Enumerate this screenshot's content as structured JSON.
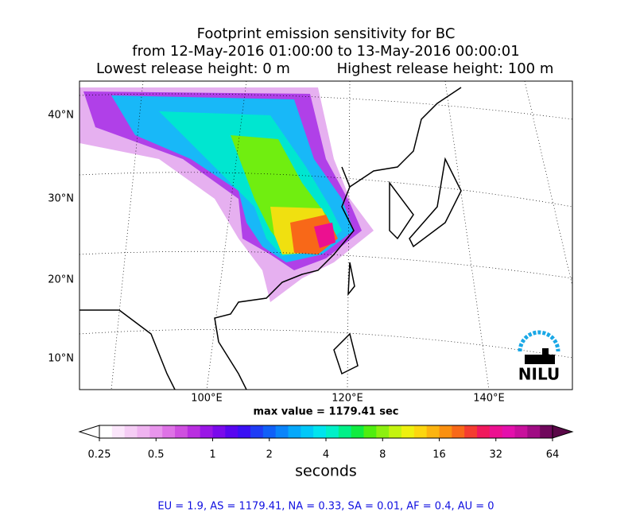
{
  "title": {
    "line1": "Footprint emission sensitivity for BC",
    "line2": "from 12-May-2016 01:00:00 to 13-May-2016 00:00:01",
    "lowest": "Lowest release height: 0 m",
    "highest": "Highest release height: 100 m"
  },
  "map": {
    "lat_labels": [
      "40°N",
      "30°N",
      "20°N",
      "10°N"
    ],
    "lon_labels": [
      "100°E",
      "120°E",
      "140°E"
    ],
    "max_value": "max value = 1179.41 sec",
    "logo": "NILU"
  },
  "colorbar": {
    "lim": [
      0.25,
      64
    ],
    "log": true,
    "ticks": [
      0.25,
      0.5,
      1,
      2,
      4,
      8,
      16,
      32,
      64
    ],
    "label": "seconds",
    "colors": [
      "#ffffff",
      "#fbe6fb",
      "#f5cdf5",
      "#efb3f0",
      "#e895ec",
      "#de72e6",
      "#cf4fe0",
      "#b92ee0",
      "#9a16e6",
      "#7a0aec",
      "#5806f0",
      "#3a10f4",
      "#1f3cf5",
      "#1060f8",
      "#0a84fa",
      "#06a8fa",
      "#00c8f8",
      "#00e4ee",
      "#00f0c8",
      "#00f088",
      "#10ec40",
      "#50ee10",
      "#8cf010",
      "#c4f410",
      "#eef010",
      "#fcd610",
      "#fcb410",
      "#fa9010",
      "#f86818",
      "#f43c30",
      "#f0185c",
      "#ec1090",
      "#e410ac",
      "#c8109c",
      "#a00c84",
      "#70085c"
    ],
    "under_color": "#ffffff",
    "over_color": "#5a0848"
  },
  "footer": "EU = 1.9,  AS = 1179.41,  NA = 0.33,  SA = 0.01,  AF = 0.4,  AU = 0"
}
